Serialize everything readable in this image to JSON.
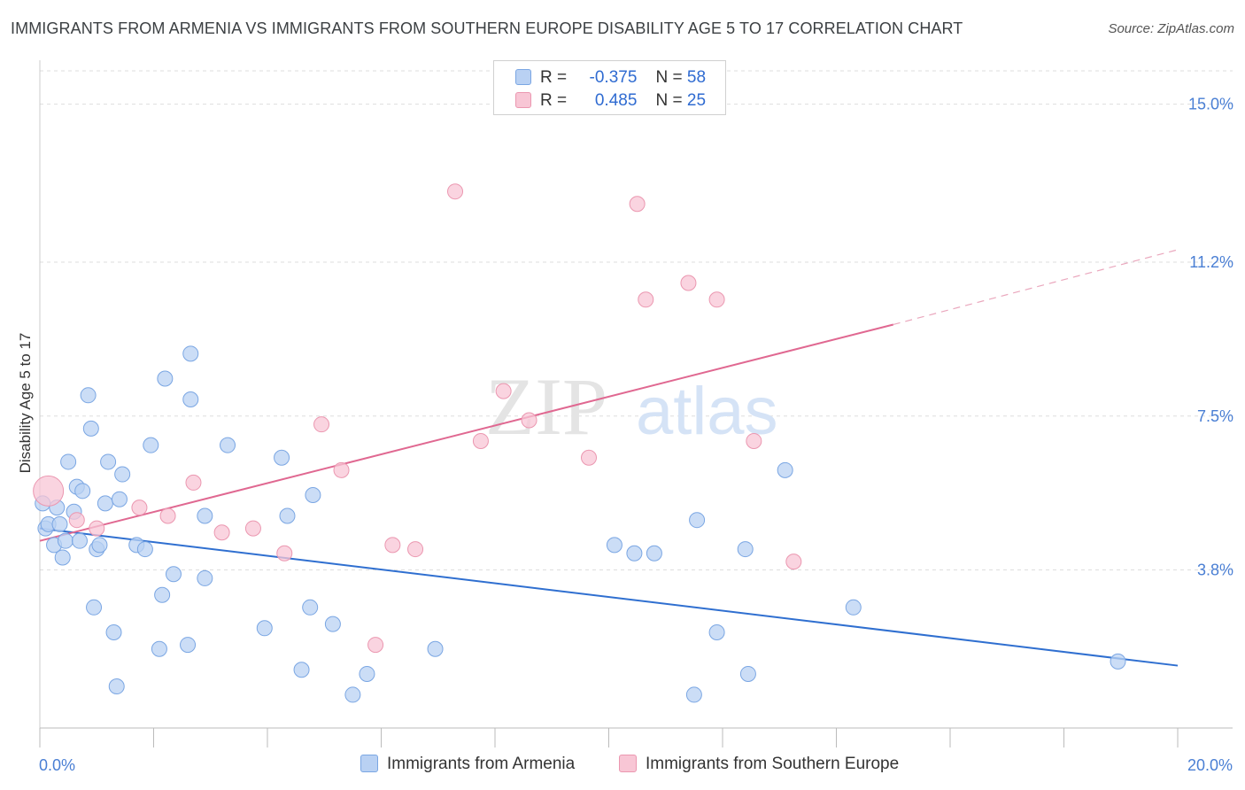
{
  "title": "IMMIGRANTS FROM ARMENIA VS IMMIGRANTS FROM SOUTHERN EUROPE DISABILITY AGE 5 TO 17 CORRELATION CHART",
  "source": "Source: ZipAtlas.com",
  "watermark": {
    "zip": "ZIP",
    "atlas": "atlas"
  },
  "colors": {
    "blue_fill": "#b9d1f3",
    "blue_stroke": "#7aa6e3",
    "blue_line": "#2f6fd0",
    "pink_fill": "#f8c6d5",
    "pink_stroke": "#eb97b0",
    "pink_line": "#e06891",
    "tick_text": "#4a7fd4",
    "grid": "#dddddd"
  },
  "legend": {
    "rows": [
      {
        "r_label": "R =",
        "r_value": "-0.375",
        "n_label": "N =",
        "n_value": "58"
      },
      {
        "r_label": "R =",
        "r_value": "0.485",
        "n_label": "N =",
        "n_value": "25"
      }
    ]
  },
  "chart_data": {
    "type": "scatter",
    "title": "IMMIGRANTS FROM ARMENIA VS IMMIGRANTS FROM SOUTHERN EUROPE DISABILITY AGE 5 TO 17 CORRELATION CHART",
    "xlabel": "",
    "ylabel": "Disability Age 5 to 17",
    "xlim": [
      0,
      20
    ],
    "ylim": [
      0,
      15.8
    ],
    "x_tick_labels": [
      "0.0%",
      "20.0%"
    ],
    "y_ticks": [
      3.8,
      7.5,
      11.2,
      15.0
    ],
    "y_tick_labels": [
      "3.8%",
      "7.5%",
      "11.2%",
      "15.0%"
    ],
    "grid": "horizontal dashed",
    "legend_position": "top-center",
    "series": [
      {
        "name": "Immigrants from Armenia",
        "color": "#b9d1f3",
        "points": [
          [
            0.05,
            5.4
          ],
          [
            0.1,
            4.8
          ],
          [
            0.15,
            4.9
          ],
          [
            0.25,
            4.4
          ],
          [
            0.3,
            5.3
          ],
          [
            0.35,
            4.9
          ],
          [
            0.4,
            4.1
          ],
          [
            0.45,
            4.5
          ],
          [
            0.5,
            6.4
          ],
          [
            0.6,
            5.2
          ],
          [
            0.65,
            5.8
          ],
          [
            0.7,
            4.5
          ],
          [
            0.75,
            5.7
          ],
          [
            0.85,
            8.0
          ],
          [
            0.9,
            7.2
          ],
          [
            0.95,
            2.9
          ],
          [
            1.0,
            4.3
          ],
          [
            1.05,
            4.4
          ],
          [
            1.15,
            5.4
          ],
          [
            1.2,
            6.4
          ],
          [
            1.3,
            2.3
          ],
          [
            1.35,
            1.0
          ],
          [
            1.4,
            5.5
          ],
          [
            1.45,
            6.1
          ],
          [
            1.7,
            4.4
          ],
          [
            1.85,
            4.3
          ],
          [
            1.95,
            6.8
          ],
          [
            2.1,
            1.9
          ],
          [
            2.15,
            3.2
          ],
          [
            2.2,
            8.4
          ],
          [
            2.35,
            3.7
          ],
          [
            2.6,
            2.0
          ],
          [
            2.65,
            7.9
          ],
          [
            2.65,
            9.0
          ],
          [
            2.9,
            5.1
          ],
          [
            2.9,
            3.6
          ],
          [
            3.3,
            6.8
          ],
          [
            3.95,
            2.4
          ],
          [
            4.25,
            6.5
          ],
          [
            4.35,
            5.1
          ],
          [
            4.6,
            1.4
          ],
          [
            4.75,
            2.9
          ],
          [
            4.8,
            5.6
          ],
          [
            5.15,
            2.5
          ],
          [
            5.5,
            0.8
          ],
          [
            5.75,
            1.3
          ],
          [
            6.95,
            1.9
          ],
          [
            10.1,
            4.4
          ],
          [
            10.45,
            4.2
          ],
          [
            10.8,
            4.2
          ],
          [
            11.5,
            0.8
          ],
          [
            11.55,
            5.0
          ],
          [
            11.9,
            2.3
          ],
          [
            12.45,
            1.3
          ],
          [
            12.4,
            4.3
          ],
          [
            13.1,
            6.2
          ],
          [
            14.3,
            2.9
          ],
          [
            18.95,
            1.6
          ]
        ],
        "trend": {
          "x": [
            0,
            20
          ],
          "y": [
            4.8,
            1.5
          ]
        }
      },
      {
        "name": "Immigrants from Southern Europe",
        "color": "#f8c6d5",
        "points": [
          [
            0.15,
            5.7
          ],
          [
            0.65,
            5.0
          ],
          [
            1.0,
            4.8
          ],
          [
            1.75,
            5.3
          ],
          [
            2.25,
            5.1
          ],
          [
            2.7,
            5.9
          ],
          [
            3.2,
            4.7
          ],
          [
            3.75,
            4.8
          ],
          [
            4.3,
            4.2
          ],
          [
            4.95,
            7.3
          ],
          [
            5.3,
            6.2
          ],
          [
            5.9,
            2.0
          ],
          [
            6.2,
            4.4
          ],
          [
            6.6,
            4.3
          ],
          [
            7.3,
            12.9
          ],
          [
            7.75,
            6.9
          ],
          [
            8.15,
            8.1
          ],
          [
            8.6,
            7.4
          ],
          [
            9.65,
            6.5
          ],
          [
            10.5,
            12.6
          ],
          [
            10.65,
            10.3
          ],
          [
            11.4,
            10.7
          ],
          [
            11.9,
            10.3
          ],
          [
            12.55,
            6.9
          ],
          [
            13.25,
            4.0
          ]
        ],
        "trend": {
          "x": [
            0,
            15
          ],
          "y": [
            4.5,
            9.7
          ]
        },
        "trend_dashed": {
          "x": [
            15,
            20
          ],
          "y": [
            9.7,
            11.5
          ]
        }
      }
    ]
  }
}
